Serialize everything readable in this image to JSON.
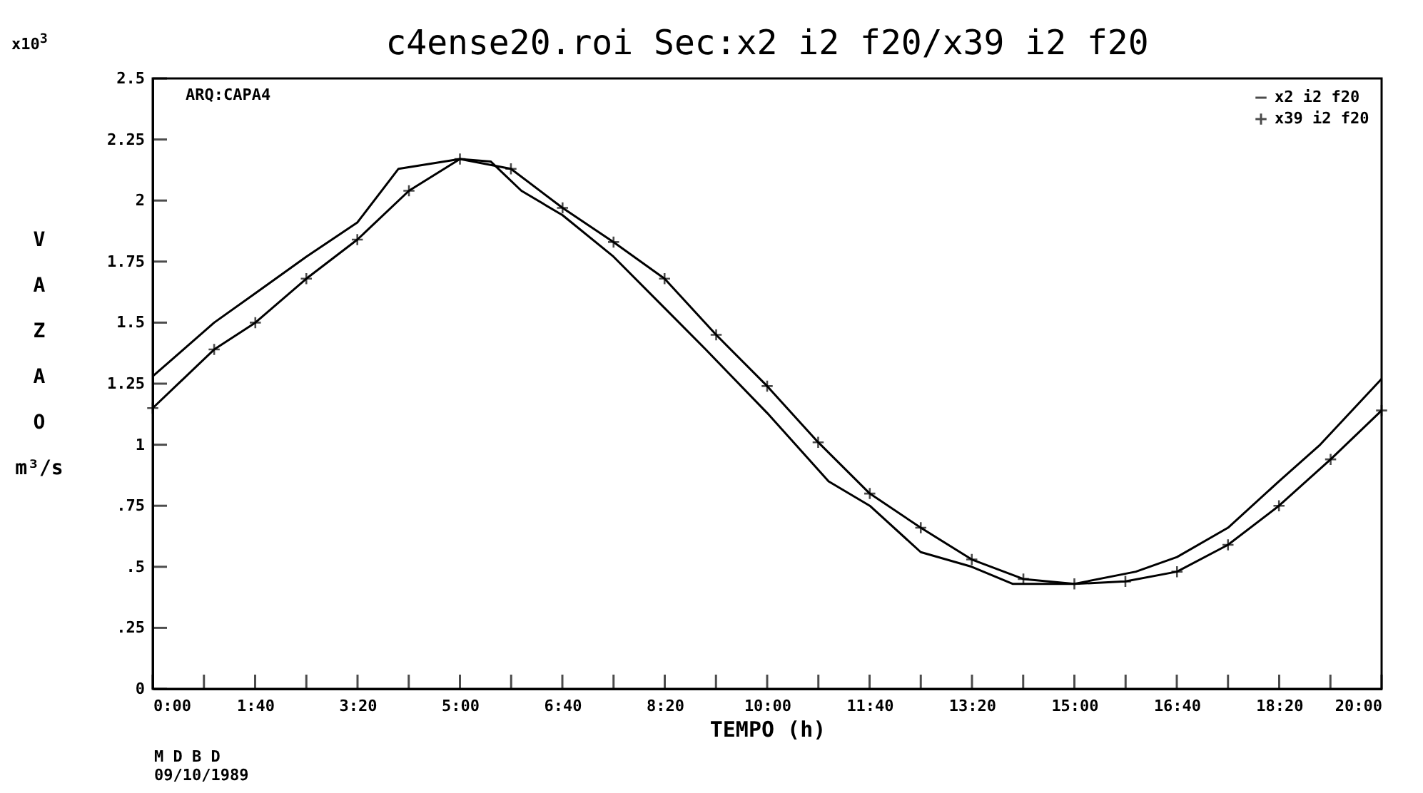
{
  "chart_data": {
    "type": "line",
    "title": "c4ense20.roi Sec:x2 i2 f20/x39 i2 f20",
    "xlabel": "TEMPO (h)",
    "ylabel": "VAZAO m³/s",
    "annotations": [
      "x10$^{3}$",
      "ARQ:CAPA4",
      "M D B D",
      "09/10/1989"
    ],
    "xlim": [
      0,
      20
    ],
    "ylim": [
      0,
      2.5
    ],
    "xticks": [
      {
        "value": 0,
        "label": "0:00"
      },
      {
        "value": 0.8333,
        "label": null
      },
      {
        "value": 1.6667,
        "label": "1:40"
      },
      {
        "value": 2.5,
        "label": null
      },
      {
        "value": 3.3333,
        "label": "3:20"
      },
      {
        "value": 4.1667,
        "label": null
      },
      {
        "value": 5,
        "label": "5:00"
      },
      {
        "value": 5.8333,
        "label": null
      },
      {
        "value": 6.6667,
        "label": "6:40"
      },
      {
        "value": 7.5,
        "label": null
      },
      {
        "value": 8.3333,
        "label": "8:20"
      },
      {
        "value": 9.1667,
        "label": null
      },
      {
        "value": 10,
        "label": "10:00"
      },
      {
        "value": 10.8333,
        "label": null
      },
      {
        "value": 11.6667,
        "label": "11:40"
      },
      {
        "value": 12.5,
        "label": null
      },
      {
        "value": 13.3333,
        "label": "13:20"
      },
      {
        "value": 14.1667,
        "label": null
      },
      {
        "value": 15,
        "label": "15:00"
      },
      {
        "value": 15.8333,
        "label": null
      },
      {
        "value": 16.6667,
        "label": "16:40"
      },
      {
        "value": 17.5,
        "label": null
      },
      {
        "value": 18.3333,
        "label": "18:20"
      },
      {
        "value": 19.1667,
        "label": null
      },
      {
        "value": 20,
        "label": "20:00"
      }
    ],
    "yticks": [
      0,
      {
        "value": 0.25,
        "label": ".25"
      },
      {
        "value": 0.5,
        "label": ".5"
      },
      {
        "value": 0.75,
        "label": ".75"
      },
      1,
      1.25,
      1.5,
      1.75,
      2,
      2.25,
      2.5
    ],
    "grid": false,
    "legend": "top right",
    "line_style": "solid",
    "series": [
      {
        "name": "x2 i2 f20",
        "color": "#000000",
        "marker": "none",
        "x": [
          0,
          1,
          1.67,
          2.5,
          3.33,
          4,
          5,
          5.5,
          6,
          6.67,
          7.5,
          8.33,
          9,
          10,
          11,
          11.67,
          12.5,
          13.33,
          14,
          15,
          16,
          16.67,
          17.5,
          18.33,
          19,
          20
        ],
        "values": [
          1.28,
          1.5,
          1.62,
          1.77,
          1.91,
          2.13,
          2.17,
          2.16,
          2.04,
          1.94,
          1.77,
          1.56,
          1.39,
          1.13,
          0.85,
          0.75,
          0.56,
          0.5,
          0.43,
          0.43,
          0.48,
          0.54,
          0.66,
          0.85,
          1.0,
          1.27
        ]
      },
      {
        "name": "x39 i2 f20",
        "color": "#000000",
        "marker": "cross",
        "x": [
          0,
          1,
          1.67,
          2.5,
          3.33,
          4.17,
          5,
          5.83,
          6.67,
          7.5,
          8.33,
          9.17,
          10,
          10.83,
          11.67,
          12.5,
          13.33,
          14.17,
          15,
          15.83,
          16.67,
          17.5,
          18.33,
          19.17,
          20
        ],
        "values": [
          1.15,
          1.39,
          1.5,
          1.68,
          1.84,
          2.04,
          2.17,
          2.13,
          1.97,
          1.83,
          1.68,
          1.45,
          1.24,
          1.01,
          0.8,
          0.66,
          0.53,
          0.45,
          0.43,
          0.44,
          0.48,
          0.59,
          0.75,
          0.94,
          1.14
        ]
      }
    ]
  }
}
